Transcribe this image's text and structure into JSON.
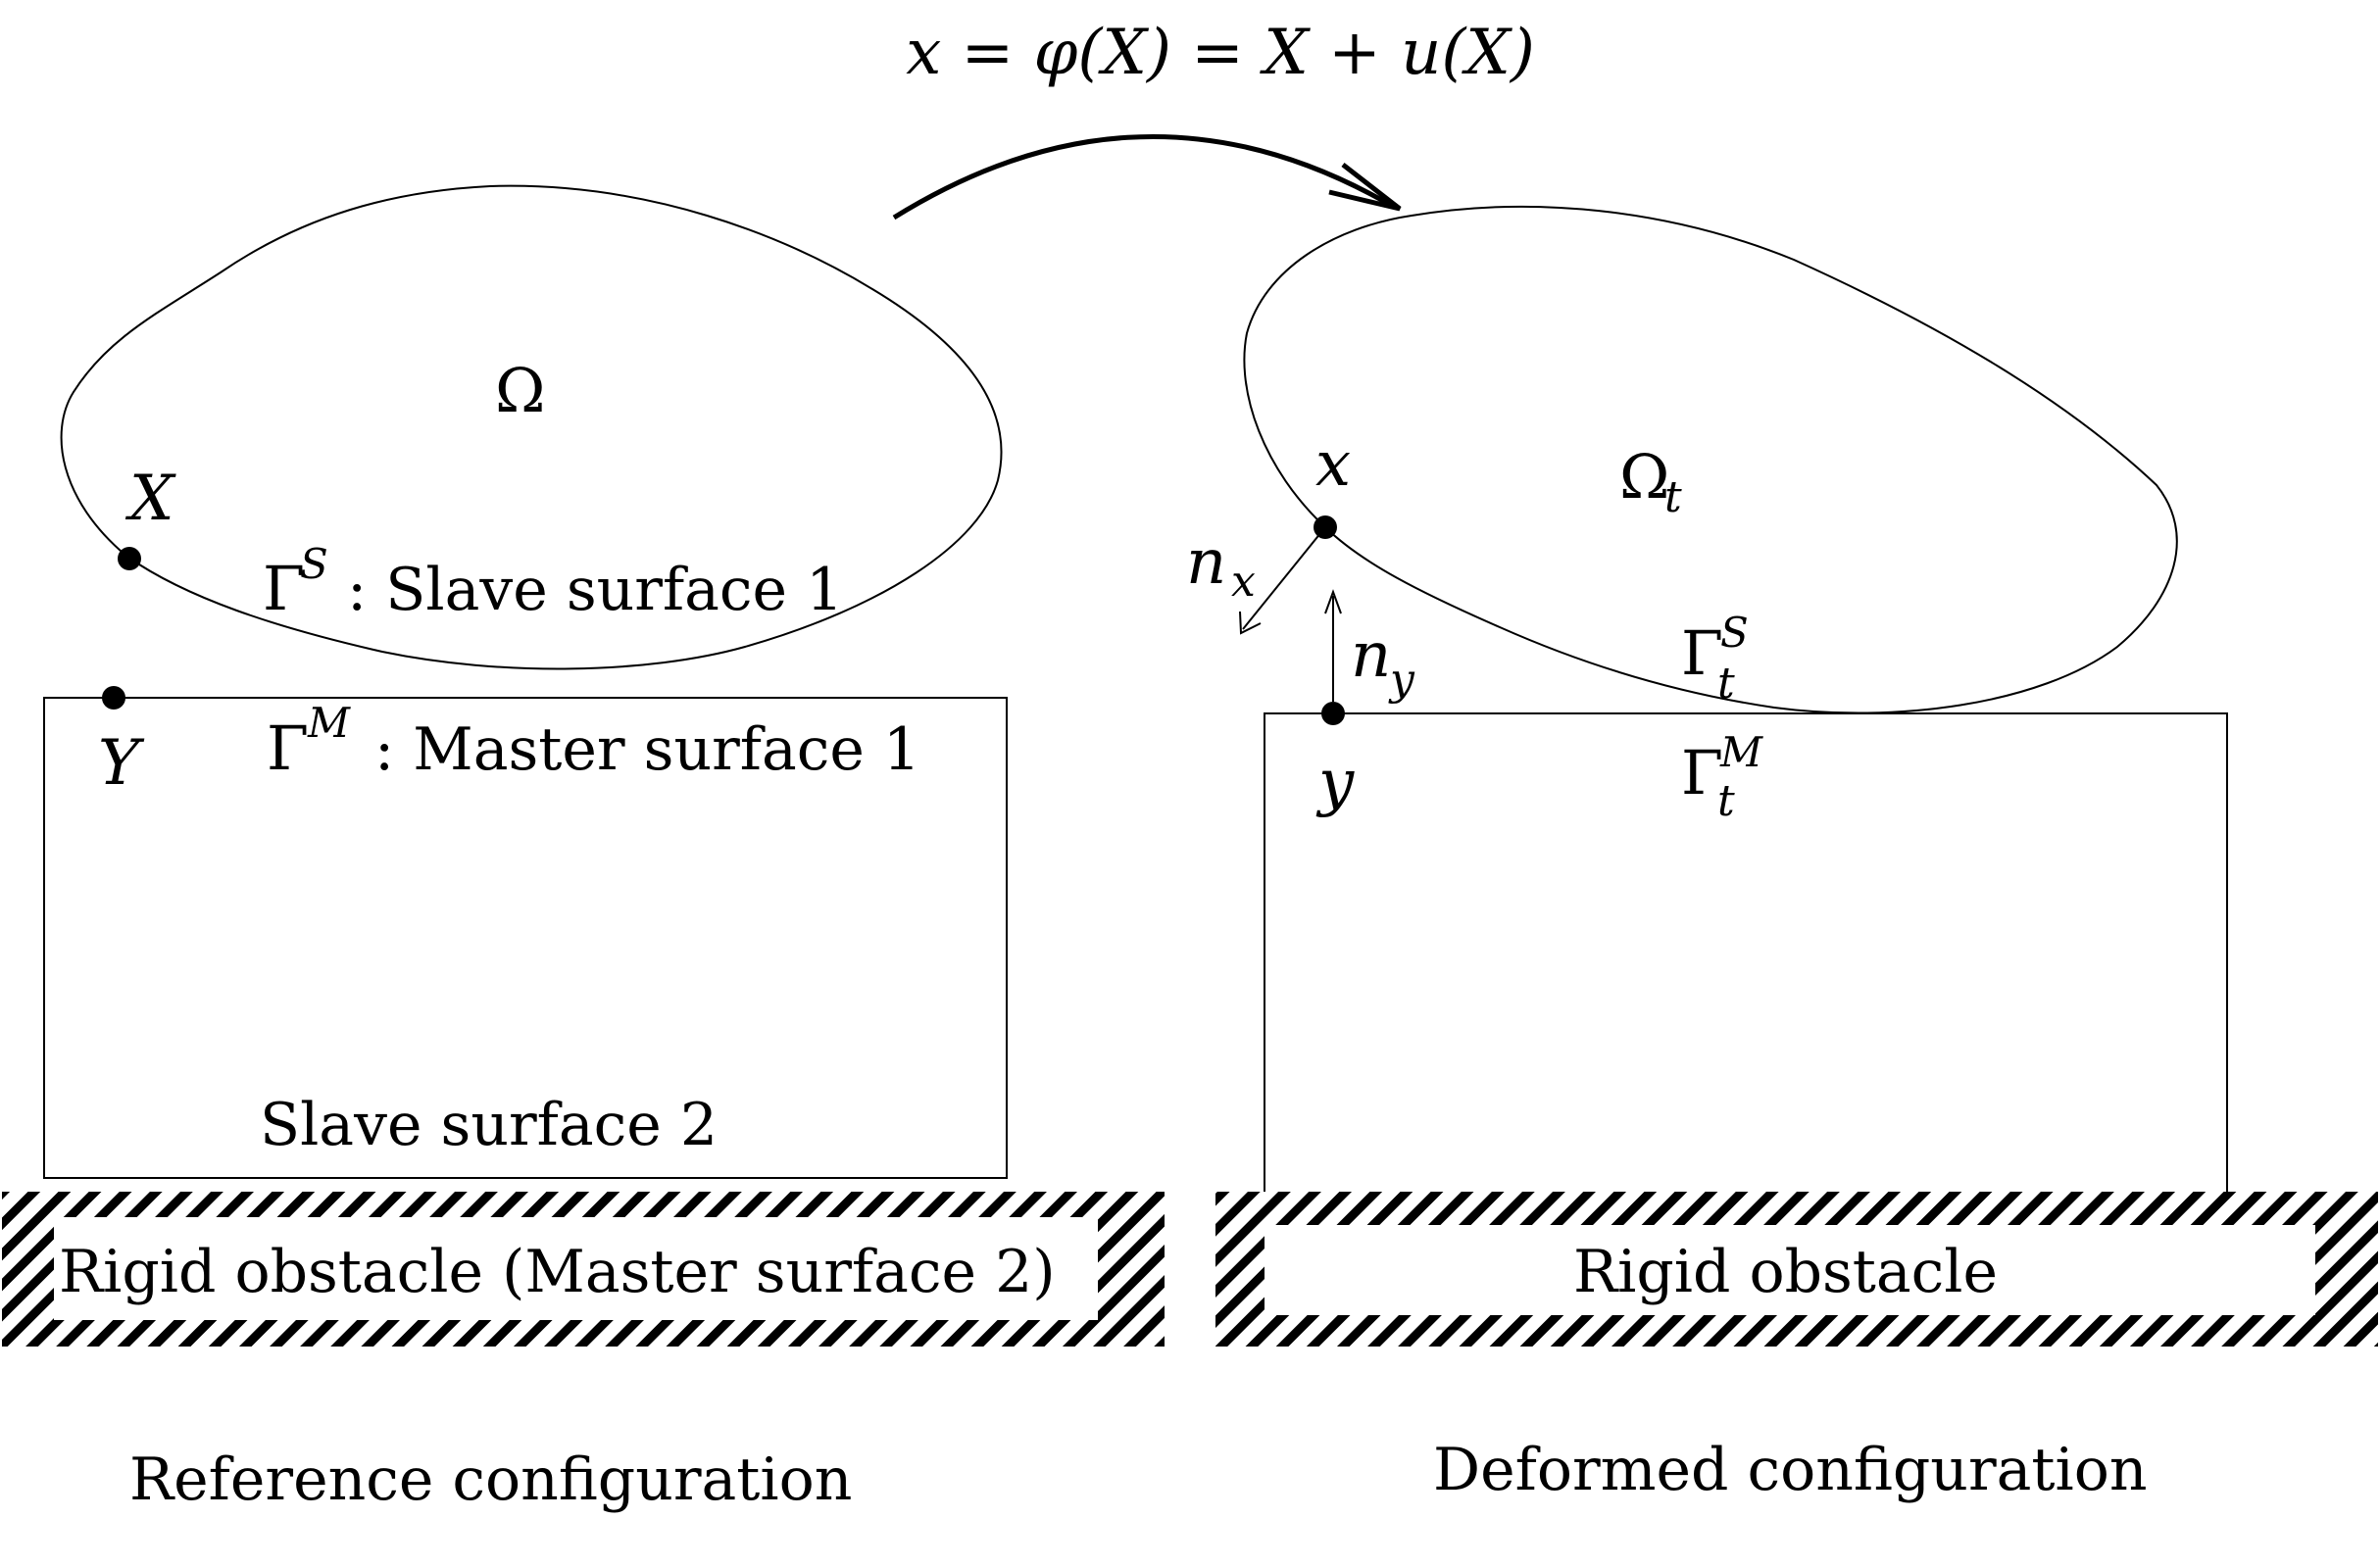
{
  "mapping_equation": "x = φ(X) = X + u(X)",
  "reference": {
    "domain": "Ω",
    "point_X": "X",
    "point_Y": "Y",
    "slave_surface_1": {
      "symbol": "Γ",
      "superscript": "S",
      "text": ": Slave surface 1"
    },
    "master_surface_1": {
      "symbol": "Γ",
      "superscript": "M",
      "text": ": Master surface 1"
    },
    "slave_surface_2": "Slave surface 2",
    "obstacle_label": "Rigid obstacle (Master surface 2)",
    "caption": "Reference configuration"
  },
  "deformed": {
    "domain": "Ω",
    "domain_subscript": "t",
    "point_x": "x",
    "point_y": "y",
    "normal_x": {
      "symbol": "n",
      "subscript": "x"
    },
    "normal_y": {
      "symbol": "n",
      "subscript": "y"
    },
    "slave_surface": {
      "symbol": "Γ",
      "superscript": "S",
      "subscript": "t"
    },
    "master_surface": {
      "symbol": "Γ",
      "superscript": "M",
      "subscript": "t"
    },
    "obstacle_label": "Rigid obstacle",
    "caption": "Deformed configuration"
  }
}
